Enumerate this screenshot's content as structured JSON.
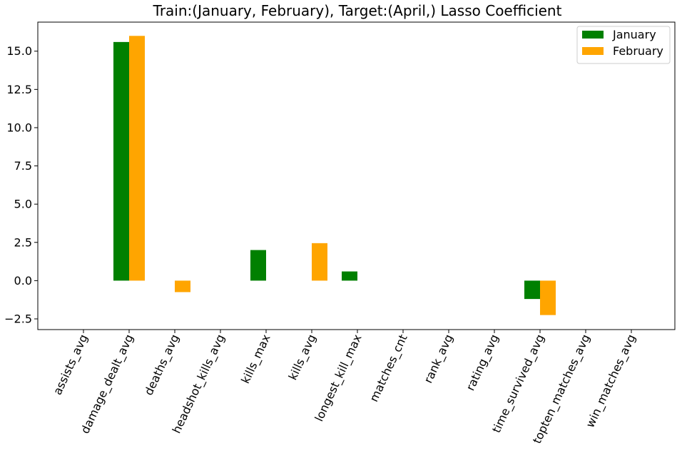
{
  "chart_data": {
    "type": "bar",
    "title": "Train:(January, February), Target:(April,) Lasso Coefficient",
    "xlabel": "",
    "ylabel": "",
    "categories": [
      "assists_avg",
      "damage_dealt_avg",
      "deaths_avg",
      "headshot_kills_avg",
      "kills_max",
      "kills_avg",
      "longest_kill_max",
      "matches_cnt",
      "rank_avg",
      "rating_avg",
      "time_survived_avg",
      "topten_matches_avg",
      "win_matches_avg"
    ],
    "series": [
      {
        "name": "January",
        "color": "#008000",
        "values": [
          0,
          15.6,
          0,
          0,
          2.0,
          0,
          0.6,
          0,
          0,
          0,
          -1.2,
          0,
          0
        ]
      },
      {
        "name": "February",
        "color": "#ffa500",
        "values": [
          0,
          16.0,
          -0.75,
          0,
          0,
          2.45,
          0,
          0,
          0,
          0,
          -2.25,
          0,
          0
        ]
      }
    ],
    "yticks": [
      -2.5,
      0.0,
      2.5,
      5.0,
      7.5,
      10.0,
      12.5,
      15.0
    ],
    "ytick_labels": [
      "−2.5",
      "0.0",
      "2.5",
      "5.0",
      "7.5",
      "10.0",
      "12.5",
      "15.0"
    ],
    "ylim": [
      -3.2,
      16.9
    ],
    "grid": false,
    "legend": "top-right"
  }
}
